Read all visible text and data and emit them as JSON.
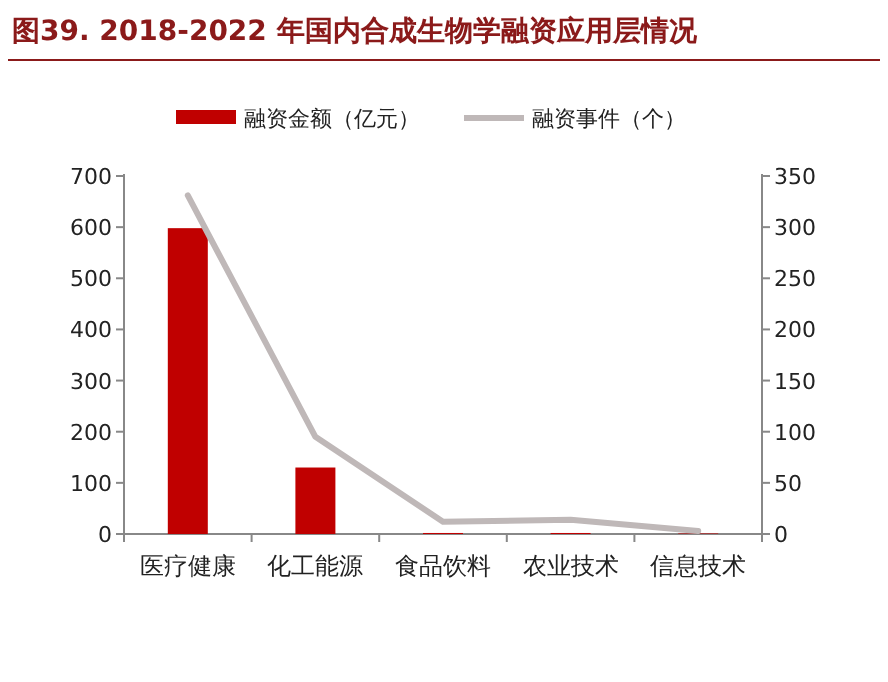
{
  "chart_data": {
    "type": "bar",
    "title": "图39. 2018-2022 年国内合成生物学融资应用层情况",
    "categories": [
      "医疗健康",
      "化工能源",
      "食品饮料",
      "农业技术",
      "信息技术"
    ],
    "series": [
      {
        "name": "融资金额（亿元）",
        "color": "#c00000",
        "values": [
          598,
          130,
          2,
          2,
          1
        ]
      },
      {
        "name": "融资事件（个）",
        "type": "line",
        "axis": "y2",
        "color": "#bfb8b8",
        "values": [
          331,
          95,
          12,
          14,
          3
        ]
      }
    ],
    "ylim": [
      0,
      700
    ],
    "yticks": [
      0,
      100,
      200,
      300,
      400,
      500,
      600,
      700
    ],
    "y2lim": [
      0,
      350
    ],
    "y2ticks": [
      0,
      50,
      100,
      150,
      200,
      250,
      300,
      350
    ],
    "legend": "top"
  }
}
